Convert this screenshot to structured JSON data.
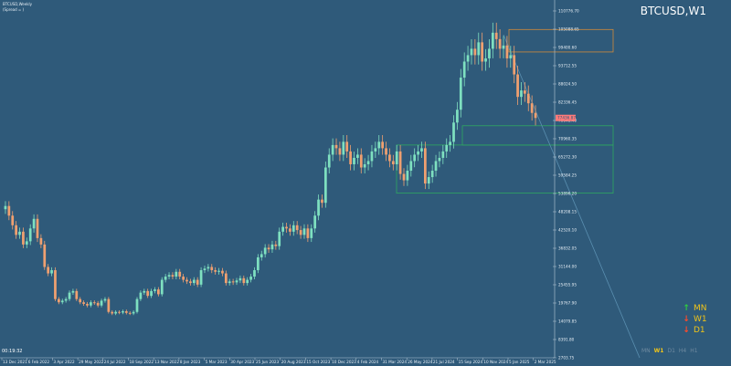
{
  "header": {
    "title_line": "BTCUSD,Weekly",
    "spread_line": "(Spread = )",
    "symbol_title": "BTCUSD,W1"
  },
  "timer": "00:19:32",
  "price_label": "77436.87",
  "price_axis": {
    "labels": [
      "110776.70",
      "105088.65",
      "99400.60",
      "93712.55",
      "88024.50",
      "82336.45",
      "76648.40",
      "70960.35",
      "65272.30",
      "59584.25",
      "53896.20",
      "48208.15",
      "42520.10",
      "36832.05",
      "31144.00",
      "25455.95",
      "19767.90",
      "14079.85",
      "8391.80",
      "2703.75"
    ],
    "colors": {
      "axis_text": "#e6eef5",
      "price_tag_bg": "#ff7a7a",
      "price_tag_text": "#2f5a7a"
    }
  },
  "date_axis": {
    "labels": [
      "13 Dec 2021",
      "6 Feb 2022",
      "3 Apr 2022",
      "29 May 2022",
      "24 Jul 2022",
      "18 Sep 2022",
      "13 Nov 2022",
      "8 Jan 2023",
      "5 Mar 2023",
      "30 Apr 2023",
      "25 Jun 2023",
      "20 Aug 2023",
      "15 Oct 2023",
      "10 Dec 2023",
      "4 Feb 2024",
      "31 Mar 2024",
      "26 May 2024",
      "21 Jul 2024",
      "15 Sep 2024",
      "10 Nov 2024",
      "5 Jan 2025",
      "2 Mar 2025"
    ]
  },
  "signals": [
    {
      "tf": "MN",
      "direction": "up",
      "arrow": "↑",
      "color": "#2ecc40"
    },
    {
      "tf": "W1",
      "direction": "down",
      "arrow": "↓",
      "color": "#ff4a2a"
    },
    {
      "tf": "D1",
      "direction": "down",
      "arrow": "↓",
      "color": "#ff4a2a"
    }
  ],
  "timeframes": [
    {
      "label": "MN",
      "active": false
    },
    {
      "label": "W1",
      "active": true
    },
    {
      "label": "D1",
      "active": false
    },
    {
      "label": "H4",
      "active": false
    },
    {
      "label": "H1",
      "active": false
    }
  ],
  "colors": {
    "background": "#2f5a7a",
    "bull": "#7ee0c0",
    "bear": "#f0a070",
    "supply_zone": "#d08a3a",
    "demand_zone": "#2fa860",
    "trendline": "#5a8fb0"
  },
  "chart_data": {
    "type": "candlestick",
    "symbol": "BTCUSD",
    "timeframe": "W1",
    "ylim": [
      2703.75,
      110776.7
    ],
    "last_price": 77436.87,
    "x_range": [
      "13 Dec 2021",
      "2 Mar 2025"
    ],
    "note_zones": [
      {
        "type": "supply",
        "price_top": 105000,
        "price_bottom": 98000
      },
      {
        "type": "demand",
        "price_top": 75000,
        "price_bottom": 69000
      },
      {
        "type": "demand",
        "price_top": 69000,
        "price_bottom": 54000
      }
    ],
    "series": [
      {
        "name": "",
        "close_path": [
          50000,
          47000,
          44000,
          41000,
          42000,
          38000,
          39000,
          43000,
          46000,
          40000,
          38000,
          31000,
          29000,
          30000,
          21000,
          20000,
          20500,
          21000,
          23000,
          23500,
          21000,
          20000,
          19500,
          19000,
          20000,
          19800,
          19000,
          20500,
          21000,
          17000,
          16500,
          17000,
          16800,
          17200,
          16700,
          16500,
          17000,
          21000,
          23000,
          23500,
          22000,
          23500,
          24000,
          22500,
          27000,
          28000,
          28500,
          28000,
          29500,
          28000,
          27000,
          26500,
          26000,
          27000,
          25500,
          30000,
          30500,
          31000,
          30000,
          29500,
          29800,
          29000,
          26000,
          26500,
          26200,
          26800,
          27500,
          26000,
          27000,
          28000,
          30000,
          34000,
          35000,
          37000,
          36500,
          38000,
          37500,
          42000,
          43500,
          43000,
          42000,
          44000,
          42500,
          41000,
          43000,
          40000,
          43000,
          47000,
          52000,
          51000,
          62000,
          66000,
          69000,
          68000,
          66000,
          70000,
          67000,
          63000,
          65000,
          66000,
          62000,
          63000,
          64000,
          67000,
          68000,
          70000,
          68000,
          66000,
          64000,
          63000,
          67000,
          60000,
          58000,
          61000,
          64000,
          66000,
          67000,
          68000,
          57000,
          59000,
          61000,
          64000,
          65000,
          67000,
          69000,
          70000,
          76000,
          80000,
          90000,
          95000,
          97000,
          99000,
          97000,
          101000,
          95000,
          96000,
          99000,
          104000,
          102000,
          99000,
          100000,
          96000,
          97000,
          91000,
          84000,
          86000,
          85000,
          82000,
          79000,
          77436
        ]
      }
    ]
  }
}
